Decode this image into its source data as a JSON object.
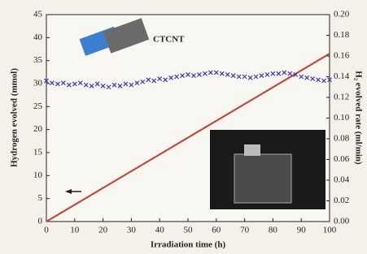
{
  "chart_data": {
    "type": "line",
    "xlabel": "Irradiation time (h)",
    "ylabel": "Hydrogen evolved (mmol)",
    "y2label": "H₂ evolved rate (ml/min)",
    "annotation": "CTCNT",
    "xlim": [
      0,
      100
    ],
    "xticks": [
      0,
      10,
      20,
      30,
      40,
      50,
      60,
      70,
      80,
      90,
      100
    ],
    "ylim": [
      0,
      45
    ],
    "yticks": [
      0,
      5,
      10,
      15,
      20,
      25,
      30,
      35,
      40,
      45
    ],
    "y2lim": [
      0,
      0.2
    ],
    "y2ticks": [
      {
        "value": 0,
        "label": "0.00"
      },
      0.02,
      0.04,
      0.06,
      0.08,
      {
        "value": 0.1,
        "label": "0.10"
      },
      0.12,
      0.14,
      0.16,
      0.18,
      {
        "value": 0.2,
        "label": "0.20"
      }
    ],
    "series": [
      {
        "type": "line",
        "color": "#d2382e",
        "x": [
          0,
          100
        ],
        "values": [
          0,
          36.5
        ]
      },
      {
        "type": "scatter",
        "color": "#3a3ab8",
        "axis": "y2",
        "x": [
          0,
          2,
          4,
          6,
          8,
          10,
          12,
          14,
          16,
          18,
          20,
          22,
          24,
          26,
          28,
          30,
          32,
          34,
          36,
          38,
          40,
          42,
          44,
          46,
          48,
          50,
          52,
          54,
          56,
          58,
          60,
          62,
          64,
          66,
          68,
          70,
          72,
          74,
          76,
          78,
          80,
          82,
          84,
          86,
          88,
          90,
          92,
          94,
          96,
          98,
          100
        ],
        "values": [
          0.136,
          0.134,
          0.133,
          0.134,
          0.132,
          0.133,
          0.134,
          0.132,
          0.131,
          0.133,
          0.131,
          0.13,
          0.132,
          0.131,
          0.133,
          0.132,
          0.134,
          0.135,
          0.137,
          0.136,
          0.138,
          0.137,
          0.139,
          0.14,
          0.141,
          0.142,
          0.141,
          0.142,
          0.143,
          0.144,
          0.144,
          0.143,
          0.142,
          0.141,
          0.14,
          0.14,
          0.139,
          0.14,
          0.141,
          0.142,
          0.143,
          0.143,
          0.144,
          0.143,
          0.142,
          0.14,
          0.139,
          0.138,
          0.137,
          0.136,
          0.137
        ]
      }
    ]
  }
}
